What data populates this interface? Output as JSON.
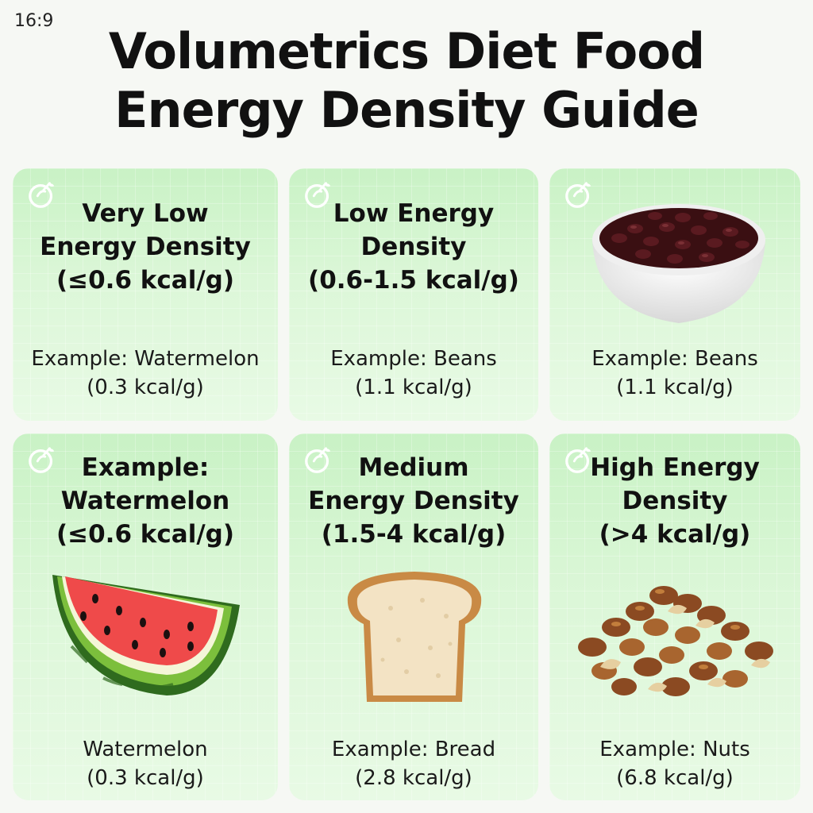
{
  "ratio_label": "16:9",
  "title": {
    "line1": "Volumetrics Diet Food",
    "line2": "Energy Density Guide"
  },
  "cards": [
    {
      "heading": [
        "Very Low",
        "Energy Density",
        "(≤0.6 kcal/g)"
      ],
      "example": [
        "Example: Watermelon",
        "(0.3 kcal/g)"
      ],
      "image": null
    },
    {
      "heading": [
        "Low Energy",
        "Density",
        "(0.6-1.5 kcal/g)"
      ],
      "example": [
        "Example: Beans",
        "(1.1 kcal/g)"
      ],
      "image": null
    },
    {
      "heading": [],
      "example": [
        "Example: Beans",
        "(1.1 kcal/g)"
      ],
      "image": "bowl-of-beans"
    },
    {
      "heading": [
        "Example:",
        "Watermelon",
        "(≤0.6 kcal/g)"
      ],
      "example": [
        "Watermelon",
        "(0.3 kcal/g)"
      ],
      "image": "watermelon-slice"
    },
    {
      "heading": [
        "Medium",
        "Energy Density",
        "(1.5-4 kcal/g)"
      ],
      "example": [
        "Example: Bread",
        "(2.8 kcal/g)"
      ],
      "image": "bread-slice"
    },
    {
      "heading": [
        "High Energy",
        "Density",
        "(>4 kcal/g)"
      ],
      "example": [
        "Example: Nuts",
        "(6.8 kcal/g)"
      ],
      "image": "mixed-nuts"
    }
  ],
  "icons": {
    "badge": "apple-leaf-icon"
  },
  "colors": {
    "card_top": "#c9f2c5",
    "card_bottom": "#e6f9e3",
    "background": "#f6f8f4"
  }
}
